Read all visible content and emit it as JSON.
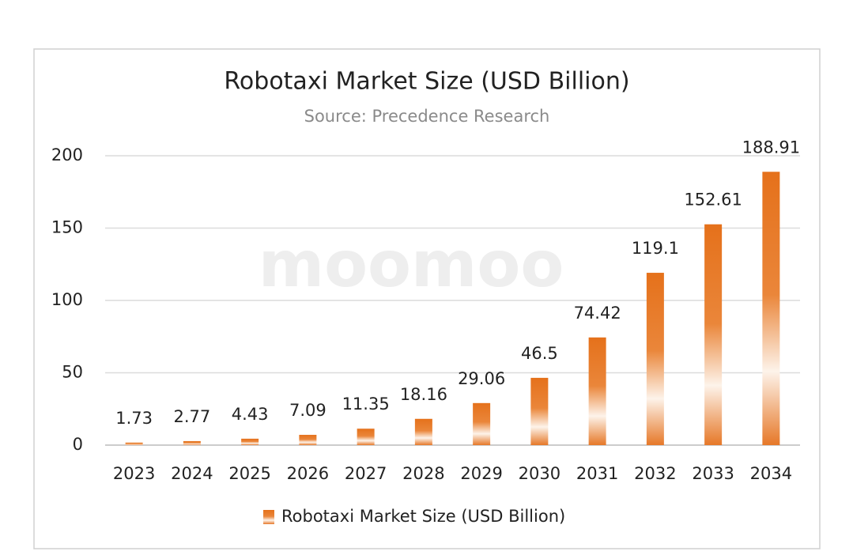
{
  "chart_data": {
    "type": "bar",
    "title": "Robotaxi Market Size (USD Billion)",
    "subtitle": "Source: Precedence Research",
    "watermark": "moomoo",
    "categories": [
      "2023",
      "2024",
      "2025",
      "2026",
      "2027",
      "2028",
      "2029",
      "2030",
      "2031",
      "2032",
      "2033",
      "2034"
    ],
    "series": [
      {
        "name": "Robotaxi Market Size (USD Billion)",
        "color": "#e5711b",
        "values": [
          1.73,
          2.77,
          4.43,
          7.09,
          11.35,
          18.16,
          29.06,
          46.5,
          74.42,
          119.1,
          152.61,
          188.91
        ]
      }
    ],
    "ylim": [
      0,
      200
    ],
    "yticks": [
      0,
      50,
      100,
      150,
      200
    ],
    "grid": true,
    "legend": "bottom"
  }
}
